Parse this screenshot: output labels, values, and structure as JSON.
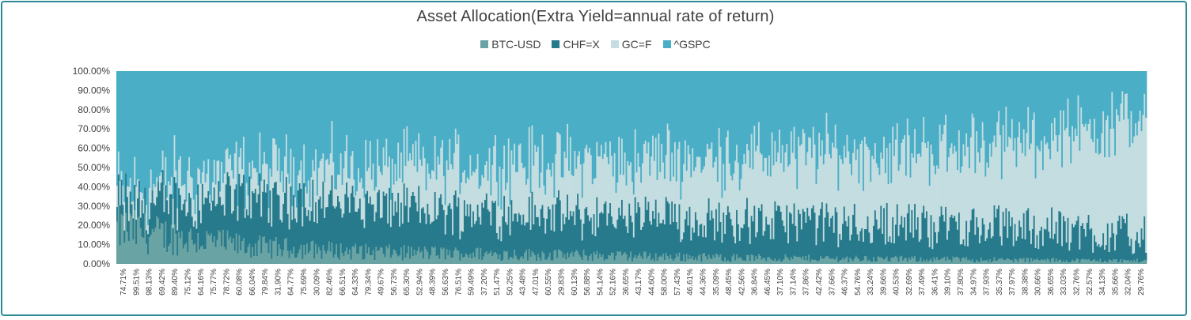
{
  "chart_data": {
    "type": "bar",
    "stacked": true,
    "normalized": true,
    "title": "Asset Allocation(Extra Yield=annual rate of return)",
    "legend_position": "top",
    "grid": false,
    "ylim": [
      0,
      100
    ],
    "y_ticks": [
      "0.00%",
      "10.00%",
      "20.00%",
      "30.00%",
      "40.00%",
      "50.00%",
      "60.00%",
      "70.00%",
      "80.00%",
      "90.00%",
      "100.00%"
    ],
    "x_tick_labels": [
      "74.71%",
      "99.51%",
      "98.13%",
      "69.42%",
      "89.40%",
      "75.12%",
      "64.16%",
      "75.77%",
      "78.72%",
      "60.08%",
      "66.04%",
      "79.84%",
      "31.90%",
      "64.77%",
      "75.69%",
      "30.09%",
      "82.46%",
      "66.51%",
      "64.33%",
      "79.34%",
      "49.67%",
      "56.73%",
      "65.30%",
      "52.94%",
      "48.39%",
      "56.63%",
      "76.51%",
      "59.49%",
      "37.20%",
      "51.47%",
      "50.25%",
      "43.48%",
      "47.01%",
      "60.55%",
      "29.83%",
      "60.13%",
      "56.88%",
      "54.14%",
      "52.16%",
      "36.65%",
      "43.17%",
      "44.60%",
      "58.00%",
      "57.43%",
      "46.61%",
      "44.36%",
      "35.09%",
      "48.45%",
      "42.56%",
      "36.84%",
      "46.45%",
      "37.10%",
      "37.14%",
      "37.86%",
      "42.42%",
      "37.66%",
      "46.37%",
      "54.76%",
      "33.24%",
      "39.66%",
      "40.53%",
      "32.69%",
      "37.49%",
      "36.41%",
      "39.10%",
      "37.80%",
      "34.97%",
      "37.93%",
      "35.37%",
      "37.97%",
      "38.38%",
      "30.66%",
      "36.65%",
      "33.03%",
      "32.76%",
      "32.57%",
      "34.13%",
      "35.66%",
      "32.04%",
      "29.76%"
    ],
    "series": [
      {
        "name": "BTC-USD",
        "color": "#6aa3a3",
        "trend": [
          18,
          9,
          6,
          5,
          4,
          3,
          2.5,
          2,
          1.5
        ]
      },
      {
        "name": "CHF=X",
        "color": "#267a8c",
        "trend": [
          12,
          26,
          24,
          21,
          20,
          19,
          18,
          17,
          13
        ]
      },
      {
        "name": "GC=F",
        "color": "#c3dde0",
        "trend": [
          8,
          14,
          20,
          26,
          30,
          34,
          38,
          44,
          62
        ]
      },
      {
        "name": "^GSPC",
        "color": "#4aaec6"
      }
    ],
    "bar_count": 700
  }
}
